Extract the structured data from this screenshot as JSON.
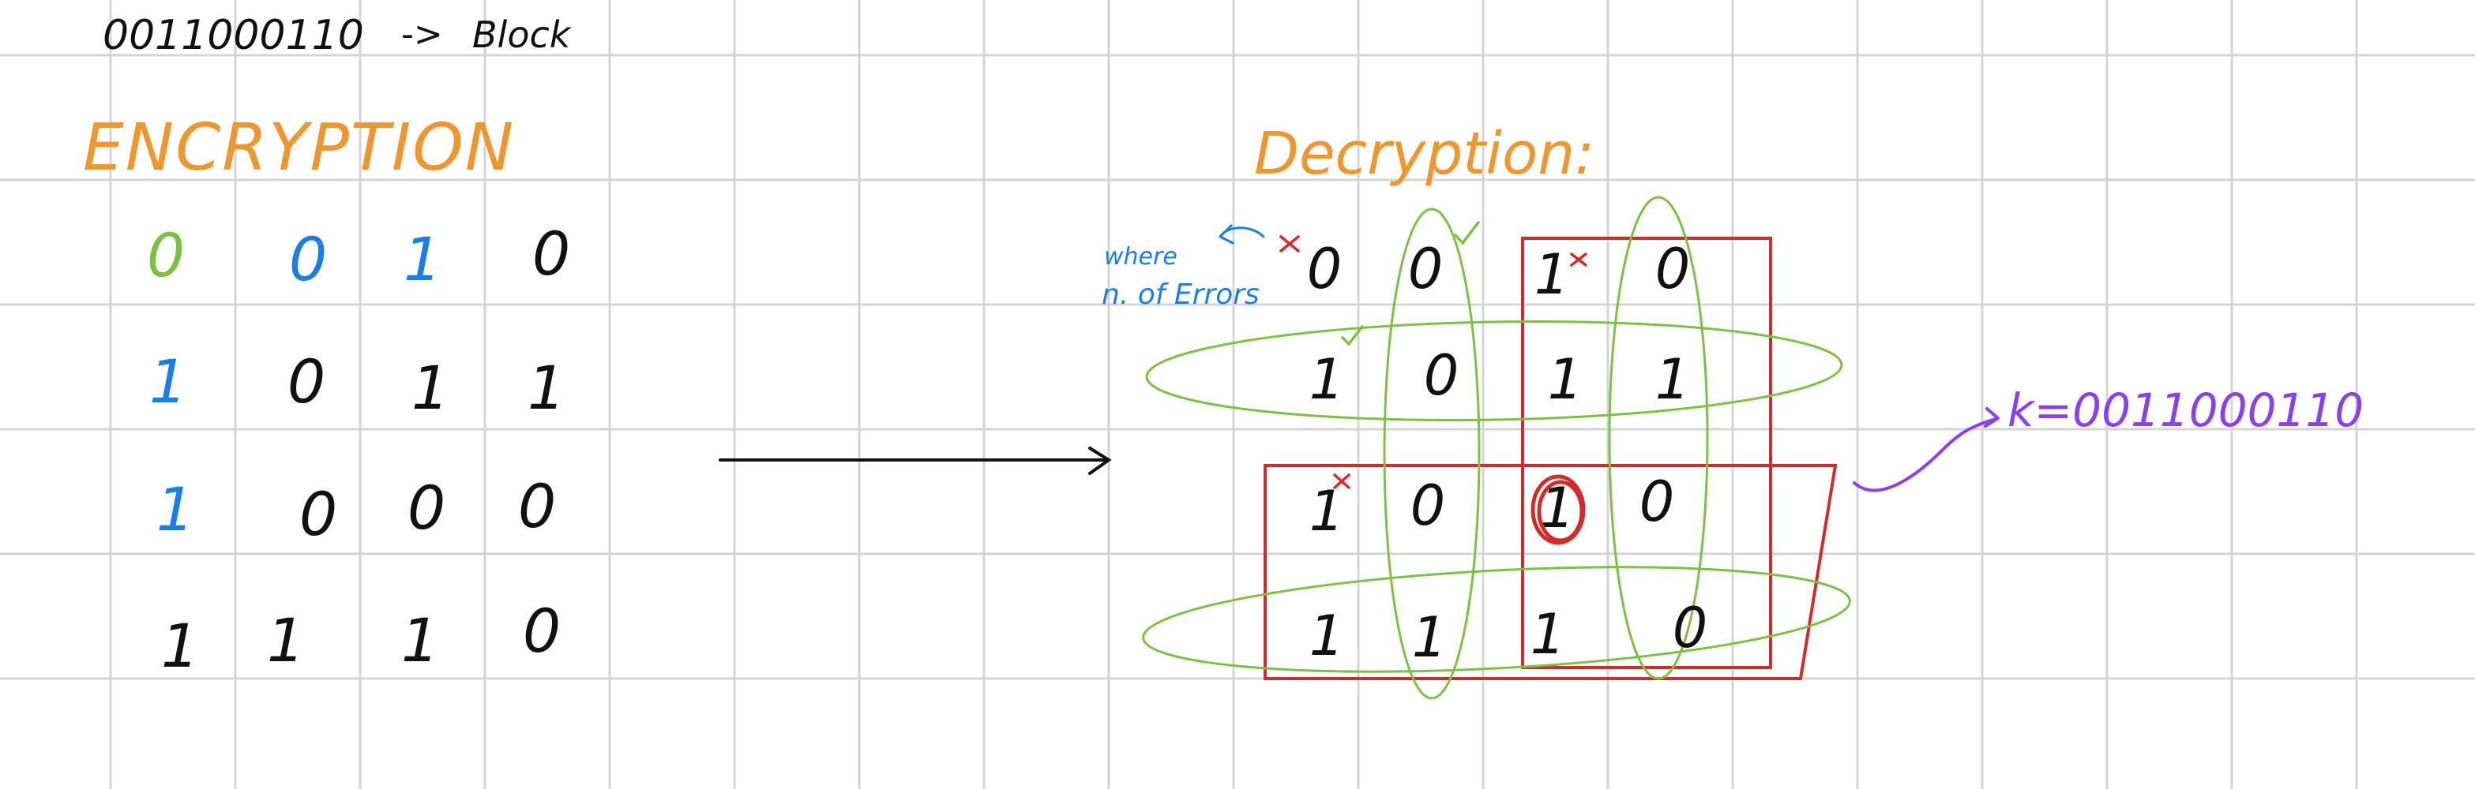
{
  "colors": {
    "background": "#ffffff",
    "grid": "#d4d4d4",
    "ink": "#111111",
    "orange": "#f0962e",
    "blue": "#1a7ee8",
    "green": "#7cc242",
    "red": "#d42a2a",
    "purple": "#8a3ff0"
  },
  "header": {
    "message": "0011000110",
    "arrow": "->",
    "block_label": "Block"
  },
  "encryption": {
    "title": "ENCRYPTION",
    "grid": [
      [
        "0",
        "0",
        "1",
        "0"
      ],
      [
        "1",
        "0",
        "1",
        "1"
      ],
      [
        "1",
        "0",
        "0",
        "0"
      ],
      [
        "1",
        "1",
        "1",
        "0"
      ]
    ]
  },
  "decryption": {
    "title": "Decryption:",
    "note_line1": "where",
    "note_line2": "n. of Errors",
    "grid": [
      [
        "0",
        "0",
        "1",
        "0"
      ],
      [
        "1",
        "0",
        "1",
        "1"
      ],
      [
        "1",
        "0",
        "1",
        "0"
      ],
      [
        "1",
        "1",
        "1",
        "0"
      ]
    ],
    "result": "k=0011000110"
  }
}
